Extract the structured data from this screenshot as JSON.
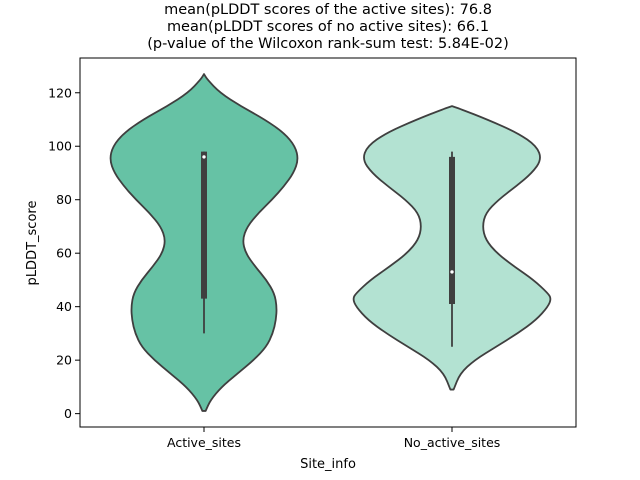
{
  "chart_data": {
    "type": "violin",
    "title_lines": [
      "mean(pLDDT scores of the active sites): 76.8",
      "mean(pLDDT scores of no active sites): 66.1",
      "(p-value of the Wilcoxon rank-sum test: 5.84E-02)"
    ],
    "xlabel": "Site_info",
    "ylabel": "pLDDT_score",
    "categories": [
      "Active_sites",
      "No_active_sites"
    ],
    "ylim": [
      -5,
      133
    ],
    "yticks": [
      0,
      20,
      40,
      60,
      80,
      100,
      120
    ],
    "grid": false,
    "colors": [
      "#66c2a5",
      "#b3e2d2"
    ],
    "edge_color": "#3f3f3f",
    "violins": [
      {
        "category": "Active_sites",
        "median": 96,
        "q1": 43,
        "q3": 98,
        "whisker_low": 30,
        "whisker_high": 98,
        "density": [
          [
            1,
            0.02
          ],
          [
            5,
            0.08
          ],
          [
            10,
            0.22
          ],
          [
            15,
            0.42
          ],
          [
            20,
            0.62
          ],
          [
            25,
            0.78
          ],
          [
            30,
            0.86
          ],
          [
            35,
            0.9
          ],
          [
            40,
            0.91
          ],
          [
            45,
            0.88
          ],
          [
            50,
            0.78
          ],
          [
            55,
            0.64
          ],
          [
            60,
            0.52
          ],
          [
            65,
            0.48
          ],
          [
            70,
            0.54
          ],
          [
            75,
            0.68
          ],
          [
            80,
            0.85
          ],
          [
            85,
            1.0
          ],
          [
            90,
            1.12
          ],
          [
            95,
            1.18
          ],
          [
            100,
            1.14
          ],
          [
            105,
            1.0
          ],
          [
            110,
            0.76
          ],
          [
            115,
            0.46
          ],
          [
            120,
            0.2
          ],
          [
            125,
            0.04
          ],
          [
            127,
            0.0
          ]
        ]
      },
      {
        "category": "No_active_sites",
        "median": 53,
        "q1": 41,
        "q3": 96,
        "whisker_low": 25,
        "whisker_high": 98,
        "density": [
          [
            9,
            0.02
          ],
          [
            15,
            0.1
          ],
          [
            20,
            0.28
          ],
          [
            25,
            0.55
          ],
          [
            30,
            0.82
          ],
          [
            35,
            1.05
          ],
          [
            40,
            1.2
          ],
          [
            43,
            1.24
          ],
          [
            45,
            1.2
          ],
          [
            50,
            1.02
          ],
          [
            55,
            0.78
          ],
          [
            60,
            0.56
          ],
          [
            65,
            0.42
          ],
          [
            70,
            0.38
          ],
          [
            75,
            0.42
          ],
          [
            80,
            0.58
          ],
          [
            85,
            0.8
          ],
          [
            90,
            1.0
          ],
          [
            95,
            1.12
          ],
          [
            100,
            1.06
          ],
          [
            105,
            0.82
          ],
          [
            110,
            0.44
          ],
          [
            114,
            0.1
          ],
          [
            115,
            0.0
          ]
        ]
      }
    ]
  }
}
